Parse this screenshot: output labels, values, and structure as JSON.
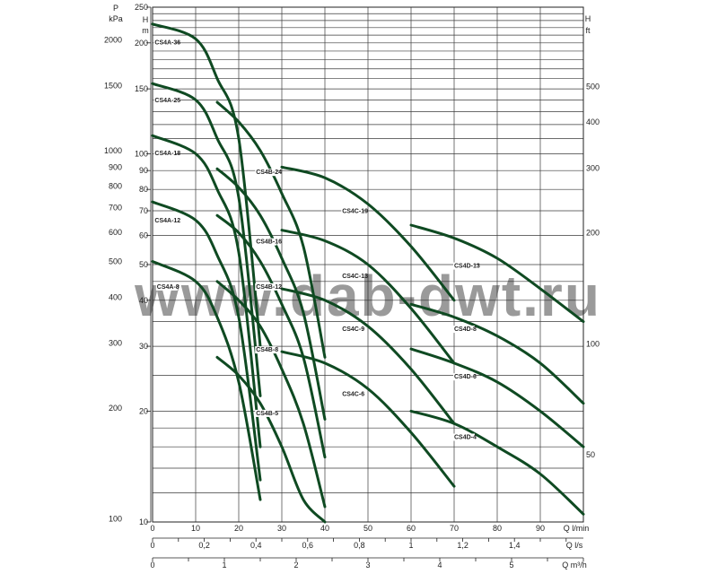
{
  "chart_data": {
    "type": "line",
    "watermark": "www.dab-dwt.ru",
    "y_scale": "log",
    "ylim": [
      10,
      250
    ],
    "left_axis_p": {
      "labels": [
        "P",
        "kPa"
      ],
      "ticks": [
        {
          "label": "2000",
          "value": 2000
        },
        {
          "label": "1500",
          "value": 1500
        },
        {
          "label": "1000",
          "value": 1000
        },
        {
          "label": "900",
          "value": 900
        },
        {
          "label": "800",
          "value": 800
        },
        {
          "label": "700",
          "value": 700
        },
        {
          "label": "600",
          "value": 600
        },
        {
          "label": "500",
          "value": 500
        },
        {
          "label": "400",
          "value": 400
        },
        {
          "label": "300",
          "value": 300
        },
        {
          "label": "200",
          "value": 200
        },
        {
          "label": "100",
          "value": 100
        }
      ]
    },
    "left_axis_h": {
      "labels": [
        "H",
        "m"
      ],
      "ticks": [
        {
          "label": "250",
          "value": 250
        },
        {
          "label": "200",
          "value": 200
        },
        {
          "label": "150",
          "value": 150
        },
        {
          "label": "100",
          "value": 100
        },
        {
          "label": "90",
          "value": 90
        },
        {
          "label": "80",
          "value": 80
        },
        {
          "label": "70",
          "value": 70
        },
        {
          "label": "60",
          "value": 60
        },
        {
          "label": "50",
          "value": 50
        },
        {
          "label": "40",
          "value": 40
        },
        {
          "label": "30",
          "value": 30
        },
        {
          "label": "20",
          "value": 20
        },
        {
          "label": "10",
          "value": 10
        }
      ]
    },
    "right_axis_ft": {
      "labels": [
        "H",
        "ft"
      ],
      "ticks": [
        {
          "label": "500",
          "value": 500
        },
        {
          "label": "400",
          "value": 400
        },
        {
          "label": "300",
          "value": 300
        },
        {
          "label": "200",
          "value": 200
        },
        {
          "label": "100",
          "value": 100
        },
        {
          "label": "50",
          "value": 50
        }
      ]
    },
    "x_axis_lmin": {
      "label": "Q l/min",
      "xlim": [
        0,
        100
      ],
      "ticks": [
        {
          "label": "0",
          "value": 0
        },
        {
          "label": "10",
          "value": 10
        },
        {
          "label": "20",
          "value": 20
        },
        {
          "label": "30",
          "value": 30
        },
        {
          "label": "40",
          "value": 40
        },
        {
          "label": "50",
          "value": 50
        },
        {
          "label": "60",
          "value": 60
        },
        {
          "label": "70",
          "value": 70
        },
        {
          "label": "80",
          "value": 80
        },
        {
          "label": "90",
          "value": 90
        }
      ]
    },
    "x_axis_ls": {
      "label": "Q l/s",
      "ticks": [
        {
          "label": "0",
          "value": 0
        },
        {
          "label": "0,2",
          "value": 0.2
        },
        {
          "label": "0,4",
          "value": 0.4
        },
        {
          "label": "0,6",
          "value": 0.6
        },
        {
          "label": "0,8",
          "value": 0.8
        },
        {
          "label": "1",
          "value": 1.0
        },
        {
          "label": "1,2",
          "value": 1.2
        },
        {
          "label": "1,4",
          "value": 1.4
        }
      ]
    },
    "x_axis_m3h": {
      "label": "Q m³/h",
      "ticks": [
        {
          "label": "0",
          "value": 0
        },
        {
          "label": "1",
          "value": 1
        },
        {
          "label": "2",
          "value": 2
        },
        {
          "label": "3",
          "value": 3
        },
        {
          "label": "4",
          "value": 4
        },
        {
          "label": "5",
          "value": 5
        }
      ]
    },
    "series": [
      {
        "name": "CS4A-36",
        "points": [
          [
            0,
            225
          ],
          [
            10,
            205
          ],
          [
            15,
            160
          ],
          [
            20,
            110
          ],
          [
            25,
            30
          ]
        ],
        "label_at": [
          0.5,
          198
        ]
      },
      {
        "name": "CS4A-25",
        "points": [
          [
            0,
            155
          ],
          [
            10,
            140
          ],
          [
            15,
            110
          ],
          [
            20,
            76
          ],
          [
            25,
            22
          ]
        ],
        "label_at": [
          0.5,
          138
        ]
      },
      {
        "name": "CS4A-18",
        "points": [
          [
            0,
            112
          ],
          [
            10,
            100
          ],
          [
            15,
            80
          ],
          [
            20,
            54
          ],
          [
            25,
            16
          ]
        ],
        "label_at": [
          0.5,
          99
        ]
      },
      {
        "name": "CS4A-12",
        "points": [
          [
            0,
            74
          ],
          [
            10,
            66
          ],
          [
            15,
            53
          ],
          [
            20,
            36
          ],
          [
            25,
            13
          ]
        ],
        "label_at": [
          0.5,
          65
        ]
      },
      {
        "name": "CS4A-8",
        "points": [
          [
            0,
            51
          ],
          [
            10,
            45
          ],
          [
            15,
            36
          ],
          [
            20,
            24
          ],
          [
            25,
            11.5
          ]
        ],
        "label_at": [
          1,
          43
        ]
      },
      {
        "name": "CS4B-24",
        "points": [
          [
            15,
            138
          ],
          [
            20,
            122
          ],
          [
            25,
            102
          ],
          [
            30,
            78
          ],
          [
            35,
            56
          ],
          [
            40,
            28
          ]
        ],
        "label_at": [
          24,
          88
        ]
      },
      {
        "name": "CS4B-16",
        "points": [
          [
            15,
            91
          ],
          [
            20,
            81
          ],
          [
            25,
            68
          ],
          [
            30,
            52
          ],
          [
            35,
            37
          ],
          [
            40,
            19
          ]
        ],
        "label_at": [
          24,
          57
        ]
      },
      {
        "name": "CS4B-12",
        "points": [
          [
            15,
            68
          ],
          [
            20,
            61
          ],
          [
            25,
            51
          ],
          [
            30,
            39
          ],
          [
            35,
            28
          ],
          [
            40,
            15
          ]
        ],
        "label_at": [
          24,
          43
        ]
      },
      {
        "name": "CS4B-8",
        "points": [
          [
            15,
            45
          ],
          [
            20,
            40
          ],
          [
            25,
            34
          ],
          [
            30,
            26
          ],
          [
            35,
            18.5
          ],
          [
            40,
            11
          ]
        ],
        "label_at": [
          24,
          29
        ]
      },
      {
        "name": "CS4B-5",
        "points": [
          [
            15,
            28
          ],
          [
            20,
            25
          ],
          [
            25,
            21
          ],
          [
            30,
            16
          ],
          [
            35,
            11.5
          ],
          [
            40,
            10
          ]
        ],
        "label_at": [
          24,
          19.5
        ]
      },
      {
        "name": "CS4C-19",
        "points": [
          [
            30,
            92
          ],
          [
            40,
            86
          ],
          [
            50,
            73
          ],
          [
            60,
            56
          ],
          [
            70,
            40
          ]
        ],
        "label_at": [
          44,
          69
        ]
      },
      {
        "name": "CS4C-13",
        "points": [
          [
            30,
            62
          ],
          [
            40,
            58
          ],
          [
            50,
            50
          ],
          [
            60,
            38
          ],
          [
            70,
            27
          ]
        ],
        "label_at": [
          44,
          46
        ]
      },
      {
        "name": "CS4C-9",
        "points": [
          [
            30,
            43
          ],
          [
            40,
            40
          ],
          [
            50,
            34
          ],
          [
            60,
            26
          ],
          [
            70,
            18.5
          ]
        ],
        "label_at": [
          44,
          33
        ]
      },
      {
        "name": "CS4C-6",
        "points": [
          [
            30,
            29
          ],
          [
            40,
            27
          ],
          [
            50,
            23
          ],
          [
            60,
            17.5
          ],
          [
            70,
            12.5
          ]
        ],
        "label_at": [
          44,
          22
        ]
      },
      {
        "name": "CS4D-13",
        "points": [
          [
            60,
            64
          ],
          [
            70,
            59
          ],
          [
            80,
            52
          ],
          [
            90,
            43
          ],
          [
            100,
            35
          ]
        ],
        "label_at": [
          70,
          49
        ]
      },
      {
        "name": "CS4D-8",
        "points": [
          [
            60,
            39
          ],
          [
            70,
            36
          ],
          [
            80,
            32
          ],
          [
            90,
            27
          ],
          [
            100,
            21
          ]
        ],
        "label_at": [
          70,
          33
        ]
      },
      {
        "name": "CS4D-6",
        "points": [
          [
            60,
            29.5
          ],
          [
            70,
            27
          ],
          [
            80,
            24
          ],
          [
            90,
            20
          ],
          [
            100,
            16
          ]
        ],
        "label_at": [
          70,
          24.5
        ]
      },
      {
        "name": "CS4D-4",
        "points": [
          [
            60,
            20
          ],
          [
            70,
            18.5
          ],
          [
            80,
            16
          ],
          [
            90,
            13.5
          ],
          [
            100,
            10.5
          ]
        ],
        "label_at": [
          70,
          16.8
        ]
      }
    ]
  }
}
